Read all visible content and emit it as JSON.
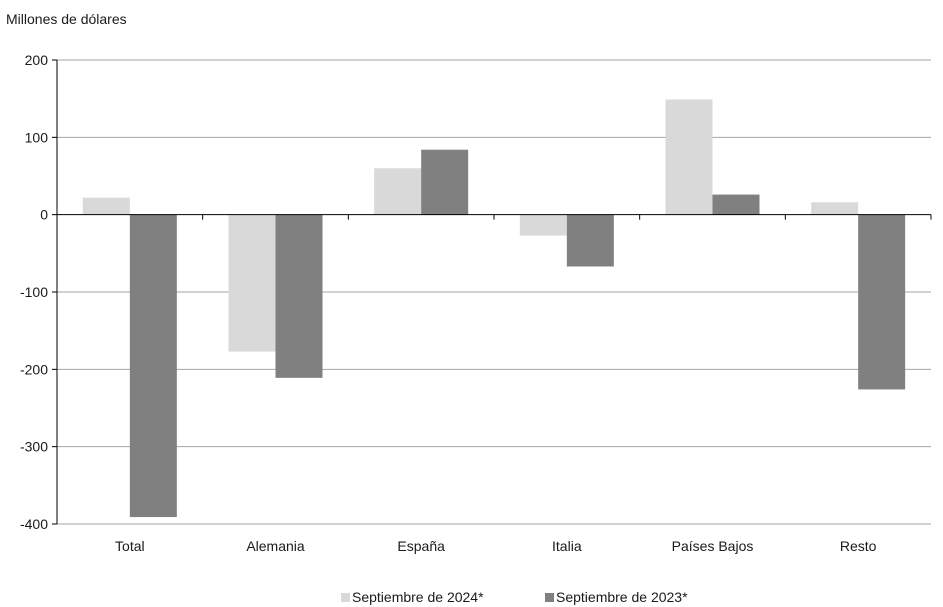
{
  "chart_data": {
    "type": "bar",
    "ylabel": "Millones de dólares",
    "ylim": [
      -400,
      200
    ],
    "yticks": [
      200,
      100,
      0,
      -100,
      -200,
      -300,
      -400
    ],
    "categories": [
      "Total",
      "Alemania",
      "España",
      "Italia",
      "Países Bajos",
      "Resto"
    ],
    "series": [
      {
        "name": "Septiembre de 2024*",
        "values": [
          22,
          -177,
          60,
          -27,
          149,
          16
        ]
      },
      {
        "name": "Septiembre de 2023*",
        "values": [
          -391,
          -211,
          84,
          -67,
          26,
          -226
        ]
      }
    ],
    "grid": true,
    "legend_position": "bottom",
    "colors": {
      "series1": "#d9d9d9",
      "series2": "#808080",
      "grid": "#a6a6a6",
      "axis": "#000000"
    }
  }
}
